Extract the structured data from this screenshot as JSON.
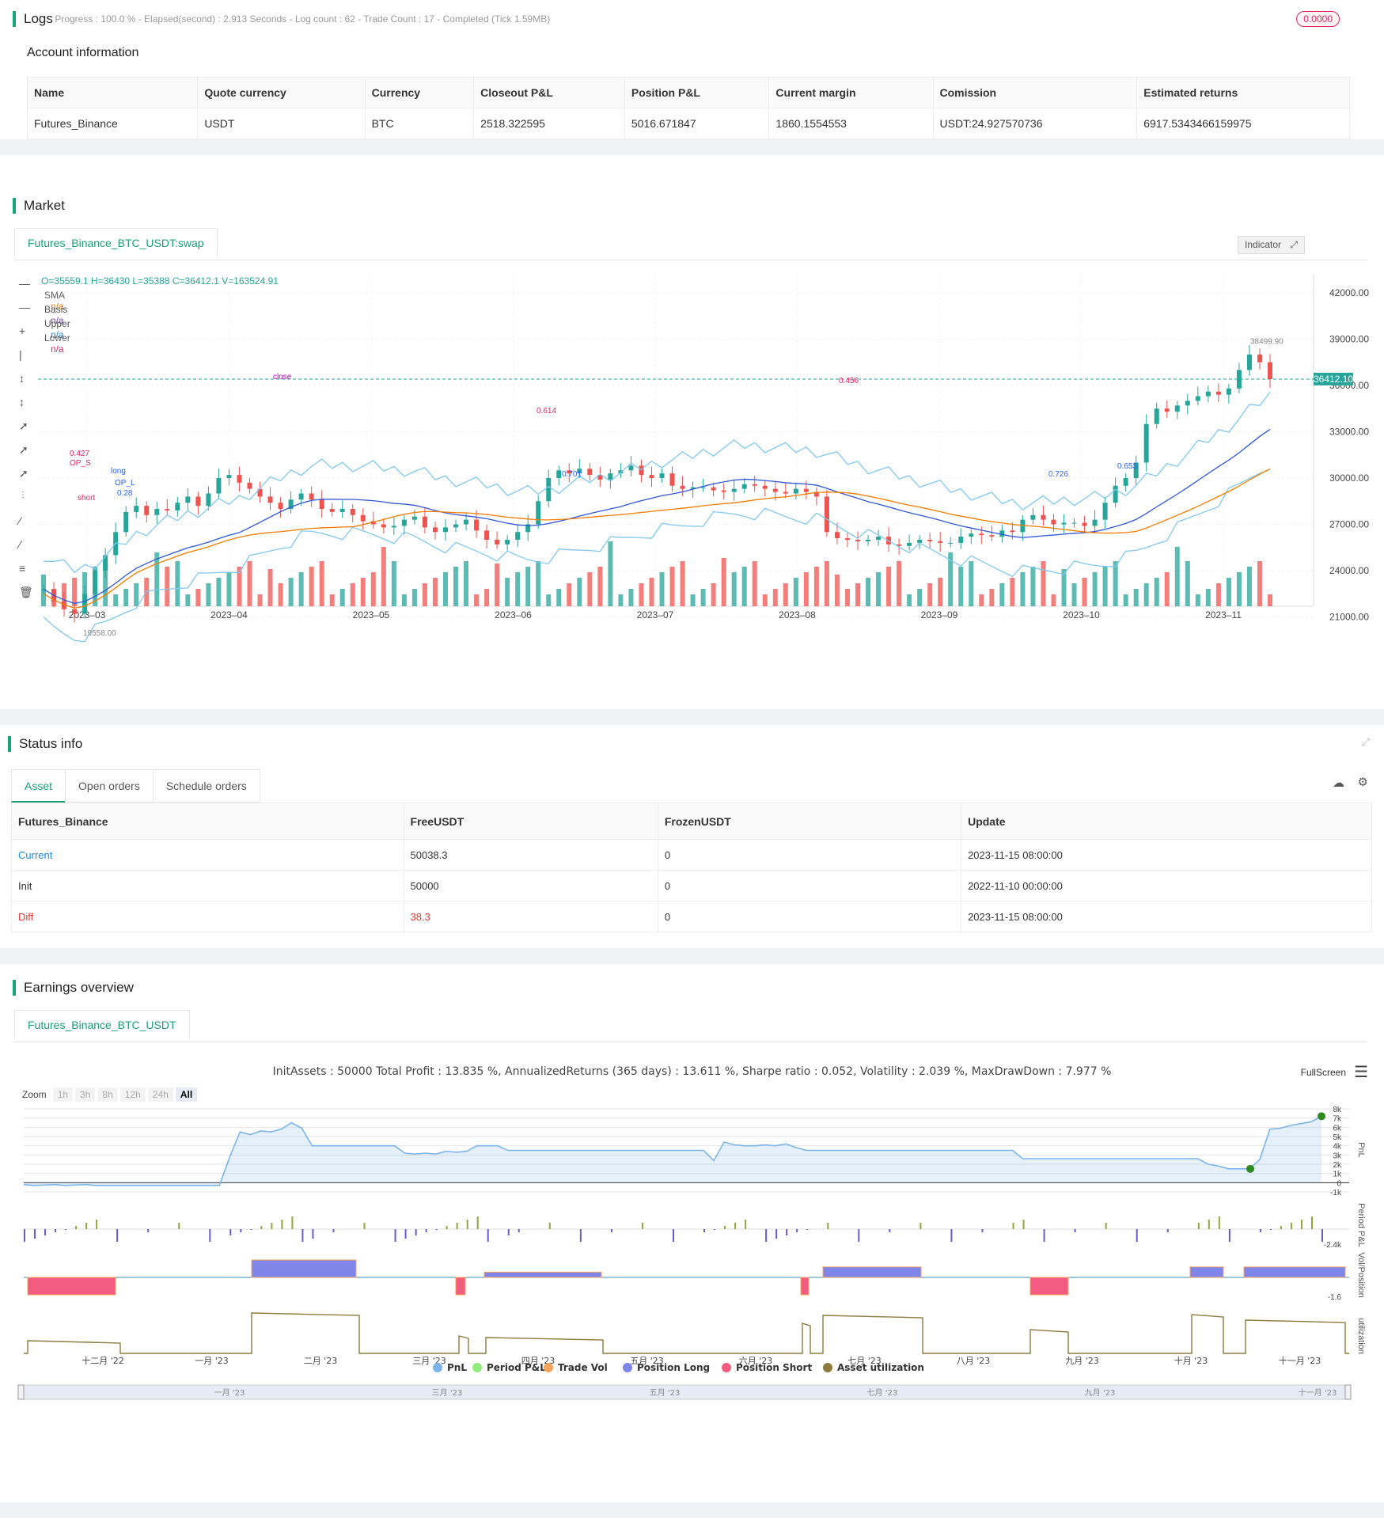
{
  "logs": {
    "title": "Logs",
    "status": "- Progress : 100.0 % - Elapsed(second) : 2.913  Seconds - Log count : 62 - Trade Count : 17 - Completed (Tick 1.59MB)",
    "badge": "0.0000"
  },
  "account": {
    "title": "Account information",
    "headers": [
      "Name",
      "Quote currency",
      "Currency",
      "Closeout P&L",
      "Position P&L",
      "Current margin",
      "Comission",
      "Estimated returns"
    ],
    "row": [
      "Futures_Binance",
      "USDT",
      "BTC",
      "2518.322595",
      "5016.671847",
      "1860.1554553",
      "USDT:24.927570736",
      "6917.5343466159975"
    ]
  },
  "market": {
    "title": "Market",
    "tab": "Futures_Binance_BTC_USDT:swap",
    "ohlc": "O=35559.1 H=36430 L=35388 C=36412.1 V=163524.91",
    "legend": [
      {
        "name": "SMA",
        "value": "n/a",
        "color": "#f57c00"
      },
      {
        "name": "Basis",
        "value": "n/a",
        "color": "#7b3fd1"
      },
      {
        "name": "Upper",
        "value": "n/a",
        "color": "#1e88e5"
      },
      {
        "name": "Lower",
        "value": "n/a",
        "color": "#e0245e"
      }
    ],
    "indicator_btn": "Indicator",
    "price_axis": [
      "42000.00",
      "39000.00",
      "36000.00",
      "33000.00",
      "30000.00",
      "27000.00",
      "24000.00",
      "21000.00"
    ],
    "last_price": "36412.10",
    "high_label": "38499.90",
    "time_axis": [
      "2023–03",
      "2023–04",
      "2023–05",
      "2023–06",
      "2023–07",
      "2023–08",
      "2023–09",
      "2023–10",
      "2023–11"
    ],
    "low_label": "19558.00",
    "annotations": [
      {
        "t": "0.427",
        "c": "#e0245e"
      },
      {
        "t": "OP_S",
        "c": "#e0245e"
      },
      {
        "t": "long",
        "c": "#2962ff"
      },
      {
        "t": "OP_L",
        "c": "#2962ff"
      },
      {
        "t": "0.28",
        "c": "#2962ff"
      },
      {
        "t": "short",
        "c": "#e0245e"
      },
      {
        "t": "close",
        "c": "#c000c0"
      },
      {
        "t": "0.614",
        "c": "#e0245e"
      },
      {
        "t": "0.701",
        "c": "#2962ff"
      },
      {
        "t": "0.456",
        "c": "#e0245e"
      },
      {
        "t": "0.726",
        "c": "#2962ff"
      },
      {
        "t": "0.653",
        "c": "#2962ff"
      }
    ]
  },
  "status": {
    "title": "Status info",
    "tabs": [
      "Asset",
      "Open orders",
      "Schedule orders"
    ],
    "headers": [
      "Futures_Binance",
      "FreeUSDT",
      "FrozenUSDT",
      "Update"
    ],
    "rows": [
      [
        "Current",
        "50038.3",
        "0",
        "2023-11-15 08:00:00"
      ],
      [
        "Init",
        "50000",
        "0",
        "2022-11-10 00:00:00"
      ],
      [
        "Diff",
        "38.3",
        "0",
        "2023-11-15 08:00:00"
      ]
    ]
  },
  "earnings": {
    "title": "Earnings overview",
    "tab": "Futures_Binance_BTC_USDT",
    "summary": "InitAssets : 50000 Total Profit : 13.835 %, AnnualizedReturns (365 days) : 13.611 %, Sharpe ratio : 0.052, Volatility : 2.039 %, MaxDrawDown : 7.977 %",
    "fullscreen": "FullScreen",
    "zoom_label": "Zoom",
    "zoom_buttons": [
      "1h",
      "3h",
      "8h",
      "12h",
      "24h",
      "All"
    ],
    "pnl_axis": [
      "8k",
      "7k",
      "6k",
      "5k",
      "4k",
      "3k",
      "2k",
      "1k",
      "0",
      "-1k"
    ],
    "period_axis_low": "-2.4k",
    "vol_axis_low": "-1.6",
    "pane_labels": [
      "PnL",
      "Period P&L",
      "Vol/Position",
      "utilization"
    ],
    "time_axis": [
      "十二月 '22",
      "一月 '23",
      "二月 '23",
      "三月 '23",
      "四月 '23",
      "五月 '23",
      "六月 '23",
      "七月 '23",
      "八月 '23",
      "九月 '23",
      "十月 '23",
      "十一月 '23"
    ],
    "legend": [
      {
        "name": "PnL",
        "color": "#7cb5ec"
      },
      {
        "name": "Period P&L",
        "color": "#90ed7d"
      },
      {
        "name": "Trade Vol",
        "color": "#f7a35c"
      },
      {
        "name": "Position Long",
        "color": "#8085e9"
      },
      {
        "name": "Position Short",
        "color": "#f15c80"
      },
      {
        "name": "Asset utilization",
        "color": "#8d7b3f"
      }
    ],
    "navigator_labels": [
      "一月 '23",
      "三月 '23",
      "五月 '23",
      "七月 '23",
      "九月 '23",
      "十一月 '23"
    ]
  }
}
